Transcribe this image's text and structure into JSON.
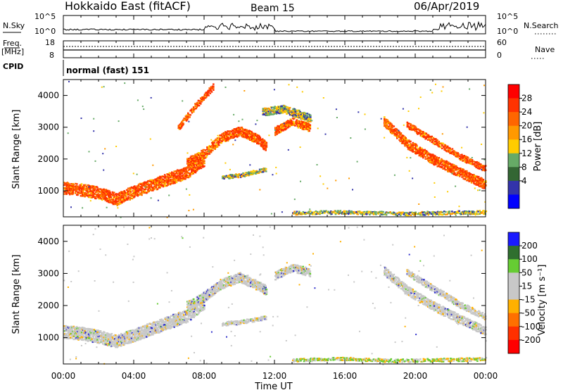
{
  "header": {
    "title": "Hokkaido East (fitACF)",
    "beam": "Beam 15",
    "date": "06/Apr/2019"
  },
  "top_panels": {
    "nsky_label": "N.Sky",
    "nsky_ticks": [
      "10^5",
      "10^0"
    ],
    "nsearch_label": "N.Search",
    "freq_label": "Freq.",
    "freq_unit": "[MHz]",
    "freq_ticks": [
      "18",
      "8"
    ],
    "nave_label": "Nave",
    "nave_ticks": [
      "60",
      "0"
    ],
    "cpid_label": "CPID",
    "cpid_text": "normal (fast) 151"
  },
  "colorbars": {
    "power": {
      "label": "Power [dB]",
      "ticks": [
        "28",
        "24",
        "20",
        "16",
        "12",
        "8",
        "4"
      ],
      "colors": [
        "#ff0000",
        "#ff3300",
        "#ff6600",
        "#ff9900",
        "#ffcc00",
        "#66aa66",
        "#336633",
        "#3333aa",
        "#0000ff"
      ]
    },
    "velocity": {
      "label": "Velocity [m s⁻¹]",
      "ticks": [
        "200",
        "100",
        "50",
        "15",
        "-15",
        "-50",
        "-100",
        "-200"
      ],
      "colors": [
        "#1a1aff",
        "#2f6f2f",
        "#66cc33",
        "#c8c8c8",
        "#c8c8c8",
        "#ffb000",
        "#ff7000",
        "#ff3000",
        "#ff0000"
      ]
    }
  },
  "chart_data": [
    {
      "type": "heatmap",
      "title": "Power",
      "ylabel": "Slant Range [km]",
      "y_ticks": [
        "4000",
        "3000",
        "2000",
        "1000"
      ],
      "ylim": [
        180,
        4500
      ],
      "xlim": [
        0,
        24
      ],
      "bands": [
        {
          "t": [
            0,
            1,
            2,
            3,
            4,
            5,
            6,
            7,
            8
          ],
          "r": [
            1100,
            1050,
            950,
            750,
            1000,
            1200,
            1400,
            1600,
            2000
          ],
          "w": 380,
          "level": "high"
        },
        {
          "t": [
            7,
            8,
            9,
            10,
            11,
            11.5
          ],
          "r": [
            1900,
            2200,
            2700,
            2900,
            2650,
            2400
          ],
          "w": 300,
          "level": "high"
        },
        {
          "t": [
            6.5,
            7.5,
            8.5
          ],
          "r": [
            3000,
            3700,
            4300
          ],
          "w": 200,
          "level": "high"
        },
        {
          "t": [
            12,
            13,
            14
          ],
          "r": [
            2900,
            3200,
            3000
          ],
          "w": 250,
          "level": "high"
        },
        {
          "t": [
            9,
            10,
            11.5
          ],
          "r": [
            1450,
            1500,
            1700
          ],
          "w": 120,
          "level": "low"
        },
        {
          "t": [
            11.3,
            12.5,
            14
          ],
          "r": [
            3500,
            3600,
            3300
          ],
          "w": 250,
          "level": "low"
        },
        {
          "t": [
            18.2,
            19.5,
            21,
            22.5,
            24
          ],
          "r": [
            3200,
            2500,
            2000,
            1600,
            1200
          ],
          "w": 300,
          "level": "high"
        },
        {
          "t": [
            19.5,
            21,
            22.5,
            24
          ],
          "r": [
            3100,
            2600,
            2100,
            1700
          ],
          "w": 200,
          "level": "high"
        },
        {
          "t": [
            13,
            16,
            19,
            24
          ],
          "r": [
            320,
            350,
            300,
            350
          ],
          "w": 110,
          "level": "low"
        }
      ]
    },
    {
      "type": "heatmap",
      "title": "Velocity",
      "ylabel": "Slant Range [km]",
      "y_ticks": [
        "4000",
        "3000",
        "2000",
        "1000"
      ],
      "ylim": [
        180,
        4500
      ],
      "xlim": [
        0,
        24
      ],
      "x_ticks": [
        "00:00",
        "04:00",
        "08:00",
        "12:00",
        "16:00",
        "20:00",
        "00:00"
      ],
      "xlabel": "Time UT",
      "bands": [
        {
          "t": [
            0,
            1,
            2,
            3,
            4,
            5,
            6,
            7,
            8
          ],
          "r": [
            1200,
            1150,
            1050,
            900,
            1100,
            1300,
            1500,
            1700,
            2100
          ],
          "w": 400,
          "level": "grey"
        },
        {
          "t": [
            7,
            8,
            9,
            10,
            11,
            11.5
          ],
          "r": [
            2000,
            2300,
            2700,
            2900,
            2650,
            2500
          ],
          "w": 300,
          "level": "grey"
        },
        {
          "t": [
            12,
            13,
            14
          ],
          "r": [
            2950,
            3200,
            3050
          ],
          "w": 250,
          "level": "grey"
        },
        {
          "t": [
            9,
            10,
            11.5
          ],
          "r": [
            1450,
            1500,
            1650
          ],
          "w": 120,
          "level": "grey"
        },
        {
          "t": [
            18.2,
            19.5,
            21,
            22.5,
            24
          ],
          "r": [
            3100,
            2500,
            2000,
            1600,
            1200
          ],
          "w": 280,
          "level": "grey"
        },
        {
          "t": [
            19.5,
            21,
            22.5,
            24
          ],
          "r": [
            3050,
            2550,
            2050,
            1650
          ],
          "w": 200,
          "level": "grey"
        },
        {
          "t": [
            13,
            16,
            19,
            24
          ],
          "r": [
            320,
            360,
            300,
            350
          ],
          "w": 100,
          "level": "green"
        }
      ]
    }
  ]
}
